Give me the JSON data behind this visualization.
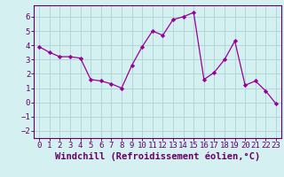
{
  "x": [
    0,
    1,
    2,
    3,
    4,
    5,
    6,
    7,
    8,
    9,
    10,
    11,
    12,
    13,
    14,
    15,
    16,
    17,
    18,
    19,
    20,
    21,
    22,
    23
  ],
  "y": [
    3.9,
    3.5,
    3.2,
    3.2,
    3.1,
    1.6,
    1.5,
    1.3,
    1.0,
    2.6,
    3.9,
    5.0,
    4.7,
    5.8,
    6.0,
    6.3,
    1.6,
    2.1,
    3.0,
    4.3,
    1.2,
    1.5,
    0.8,
    -0.1
  ],
  "xlabel": "Windchill (Refroidissement éolien,°C)",
  "line_color": "#990099",
  "marker_color": "#990099",
  "bg_color": "#d4f0f0",
  "grid_color": "#b0d8d8",
  "xlim": [
    -0.5,
    23.5
  ],
  "ylim": [
    -2.5,
    6.8
  ],
  "yticks": [
    -2,
    -1,
    0,
    1,
    2,
    3,
    4,
    5,
    6
  ],
  "xticks": [
    0,
    1,
    2,
    3,
    4,
    5,
    6,
    7,
    8,
    9,
    10,
    11,
    12,
    13,
    14,
    15,
    16,
    17,
    18,
    19,
    20,
    21,
    22,
    23
  ],
  "tick_labelsize": 6.5,
  "xlabel_fontsize": 7.5,
  "label_color": "#660066",
  "spine_color": "#660066"
}
